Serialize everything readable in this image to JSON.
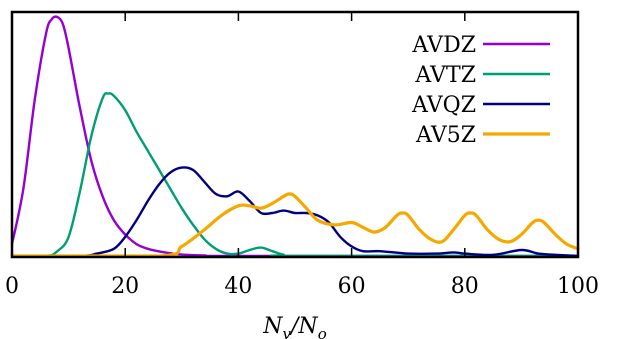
{
  "chart_data": {
    "type": "line",
    "xlabel": {
      "main": "N",
      "sub1": "v",
      "slash": "/N",
      "sub2": "o"
    },
    "ylabel": "",
    "xlim": [
      0,
      100
    ],
    "ylim": [
      0,
      1
    ],
    "xticks": [
      0,
      20,
      40,
      60,
      80,
      100
    ],
    "yticks": [],
    "grid": false,
    "legend_position": "top-right",
    "series": [
      {
        "name": "AVDZ",
        "color": "#9400d3",
        "x": [
          0,
          2,
          4,
          6,
          7,
          8,
          9,
          10,
          12,
          14,
          16,
          18,
          20,
          22,
          24,
          27,
          30,
          34,
          40,
          100
        ],
        "y": [
          0.05,
          0.28,
          0.65,
          0.93,
          0.99,
          1.0,
          0.97,
          0.87,
          0.62,
          0.4,
          0.25,
          0.15,
          0.09,
          0.05,
          0.03,
          0.015,
          0.006,
          0.002,
          0.0,
          0.0
        ]
      },
      {
        "name": "AVTZ",
        "color": "#009e73",
        "x": [
          0,
          6,
          8,
          10,
          12,
          14,
          16,
          17,
          18,
          20,
          22,
          24,
          26,
          28,
          30,
          32,
          34,
          36,
          38,
          40,
          42,
          44,
          46,
          48,
          50,
          100
        ],
        "y": [
          0.0,
          0.0,
          0.02,
          0.08,
          0.27,
          0.5,
          0.66,
          0.68,
          0.67,
          0.61,
          0.52,
          0.44,
          0.36,
          0.28,
          0.2,
          0.13,
          0.07,
          0.03,
          0.01,
          0.01,
          0.025,
          0.035,
          0.02,
          0.005,
          0.0,
          0.0
        ]
      },
      {
        "name": "AVQZ",
        "color": "#000080",
        "x": [
          0,
          12,
          15,
          18,
          20,
          22,
          24,
          26,
          28,
          30,
          32,
          34,
          36,
          38,
          40,
          42,
          44,
          46,
          48,
          50,
          52,
          54,
          56,
          58,
          60,
          62,
          65,
          70,
          75,
          78,
          80,
          85,
          90,
          93,
          96,
          100
        ],
        "y": [
          0.0,
          0.0,
          0.01,
          0.03,
          0.08,
          0.15,
          0.23,
          0.3,
          0.35,
          0.37,
          0.36,
          0.31,
          0.26,
          0.25,
          0.27,
          0.23,
          0.18,
          0.18,
          0.19,
          0.18,
          0.18,
          0.17,
          0.14,
          0.08,
          0.04,
          0.02,
          0.02,
          0.01,
          0.01,
          0.015,
          0.01,
          0.005,
          0.025,
          0.01,
          0.005,
          0.0
        ]
      },
      {
        "name": "AV5Z",
        "color": "#f5a800",
        "x": [
          0,
          26,
          30,
          34,
          37,
          40,
          42,
          44,
          46,
          48,
          49,
          50,
          52,
          54,
          57,
          60,
          62,
          64,
          66,
          68,
          69,
          70,
          72,
          74,
          76,
          78,
          80,
          81,
          82,
          84,
          86,
          88,
          90,
          92,
          93,
          94,
          96,
          98,
          100
        ],
        "y": [
          0.0,
          0.0,
          0.04,
          0.11,
          0.17,
          0.21,
          0.21,
          0.2,
          0.22,
          0.25,
          0.26,
          0.25,
          0.2,
          0.15,
          0.13,
          0.14,
          0.12,
          0.1,
          0.12,
          0.17,
          0.18,
          0.17,
          0.11,
          0.07,
          0.06,
          0.11,
          0.17,
          0.18,
          0.17,
          0.11,
          0.07,
          0.06,
          0.09,
          0.14,
          0.15,
          0.14,
          0.09,
          0.05,
          0.03
        ]
      }
    ]
  }
}
